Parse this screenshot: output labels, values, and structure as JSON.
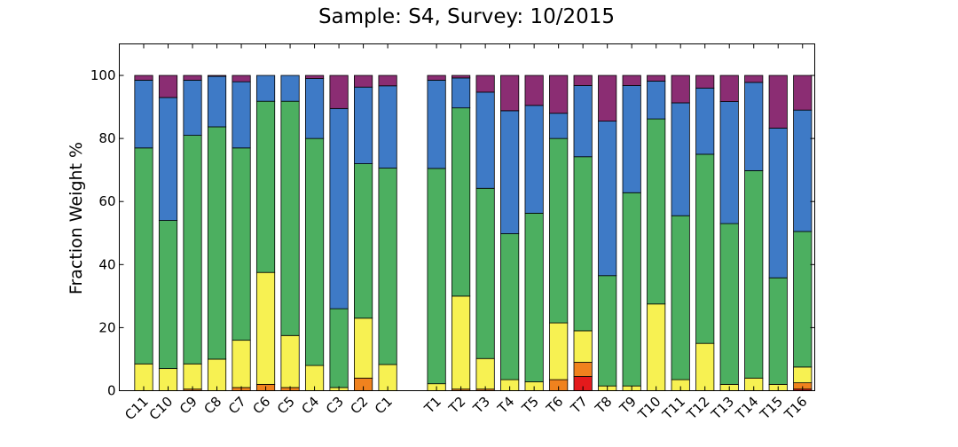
{
  "chart_data": {
    "type": "bar",
    "stacked": true,
    "title": "Sample: S4, Survey: 10/2015",
    "xlabel": "",
    "ylabel": "Fraction Weight %",
    "ylim": [
      0,
      110
    ],
    "yticks": [
      0,
      20,
      40,
      60,
      80,
      100
    ],
    "grid": false,
    "legend": "none",
    "categories": [
      "C11",
      "C10",
      "C9",
      "C8",
      "C7",
      "C6",
      "C5",
      "C4",
      "C3",
      "C2",
      "C1",
      "",
      "T1",
      "T2",
      "T3",
      "T4",
      "T5",
      "T6",
      "T7",
      "T8",
      "T9",
      "T10",
      "T11",
      "T12",
      "T13",
      "T14",
      "T15",
      "T16"
    ],
    "series": [
      {
        "color": "#e41a1c",
        "values": [
          0,
          0,
          0,
          0,
          0,
          0,
          0,
          0,
          0,
          0,
          0,
          null,
          0,
          0,
          0,
          0,
          0,
          0,
          4.5,
          0,
          0,
          0,
          0,
          0,
          0,
          0,
          0,
          0.5
        ]
      },
      {
        "color": "#f0821e",
        "values": [
          0,
          0,
          0.5,
          0,
          1,
          2,
          1,
          0,
          0,
          4,
          0,
          null,
          0,
          0.5,
          0.5,
          0,
          0,
          3.5,
          4.5,
          0,
          0,
          0,
          0,
          0,
          0,
          0,
          0,
          2
        ]
      },
      {
        "color": "#f7f152",
        "values": [
          8.5,
          7,
          8,
          10,
          15,
          35.5,
          16.5,
          8,
          1,
          19,
          8.3,
          null,
          2.2,
          29.5,
          9.7,
          3.5,
          2.8,
          18,
          10,
          1.5,
          1.5,
          27.5,
          3.5,
          15,
          2,
          4,
          2,
          5
        ]
      },
      {
        "color": "#4caf60",
        "values": [
          68.5,
          47,
          72.5,
          73.7,
          61,
          54.3,
          74.3,
          72,
          25,
          49,
          62.3,
          null,
          68.3,
          59.7,
          54,
          46.3,
          53.5,
          58.5,
          55.2,
          35,
          61.3,
          58.7,
          52,
          60,
          51,
          65.8,
          33.8,
          43
        ]
      },
      {
        "color": "#3e7ac6",
        "values": [
          21.5,
          39,
          17.5,
          16,
          21,
          8.2,
          8.2,
          19,
          63.5,
          24.3,
          26.1,
          null,
          28,
          9.5,
          30.5,
          39,
          34.2,
          8,
          22.6,
          49,
          34,
          12,
          35.8,
          21,
          38.7,
          28,
          47.5,
          38.5
        ]
      },
      {
        "color": "#8b2d73",
        "values": [
          1.5,
          7,
          1.5,
          0.3,
          2,
          0,
          0,
          1,
          10.5,
          3.7,
          3.3,
          null,
          1.5,
          0.8,
          5.3,
          11.2,
          9.5,
          12,
          3.2,
          14.5,
          3.2,
          1.8,
          8.7,
          4,
          8.3,
          2.2,
          16.7,
          11
        ]
      }
    ]
  }
}
